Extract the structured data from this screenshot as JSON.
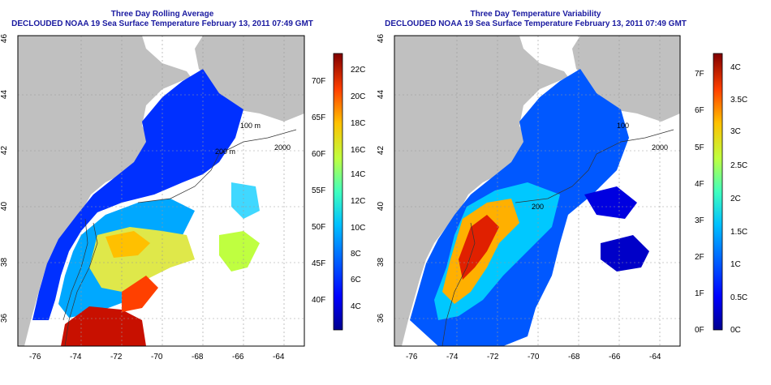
{
  "panels": [
    {
      "id": "left",
      "title_line1": "Three Day Rolling Average",
      "title_line2": "DECLOUDED NOAA 19 Sea Surface Temperature February 13, 2011 07:49 GMT",
      "colorbar_c_labels": [
        "22C",
        "20C",
        "18C",
        "16C",
        "14C",
        "12C",
        "10C",
        "8C",
        "6C",
        "4C"
      ],
      "colorbar_f_labels": [
        "70F",
        "65F",
        "60F",
        "55F",
        "50F",
        "45F",
        "40F"
      ]
    },
    {
      "id": "right",
      "title_line1": "Three Day Temperature Variability",
      "title_line2": "DECLOUDED NOAA 19 Sea Surface Temperature February 13, 2011 07:49 GMT",
      "colorbar_c_labels": [
        "4C",
        "3.5C",
        "3C",
        "2.5C",
        "2C",
        "1.5C",
        "1C",
        "0.5C",
        "0C"
      ],
      "colorbar_f_labels": [
        "7F",
        "6F",
        "5F",
        "4F",
        "3F",
        "2F",
        "1F",
        "0F"
      ]
    }
  ],
  "axes": {
    "lon_ticks": [
      "-76",
      "-74",
      "-72",
      "-70",
      "-68",
      "-66",
      "-64"
    ],
    "lat_ticks": [
      "46",
      "44",
      "42",
      "40",
      "38",
      "36"
    ]
  },
  "contour_labels": [
    "100 m",
    "200 m",
    "2000",
    "200",
    "100",
    "2000"
  ],
  "colors": {
    "land": "#c0c0c0",
    "title": "#1a1aa0",
    "sst_ramp": [
      "#00008f",
      "#0000ff",
      "#0060ff",
      "#00c0ff",
      "#40ffbf",
      "#bfff40",
      "#ffc000",
      "#ff4000",
      "#bf0000",
      "#800000"
    ]
  }
}
